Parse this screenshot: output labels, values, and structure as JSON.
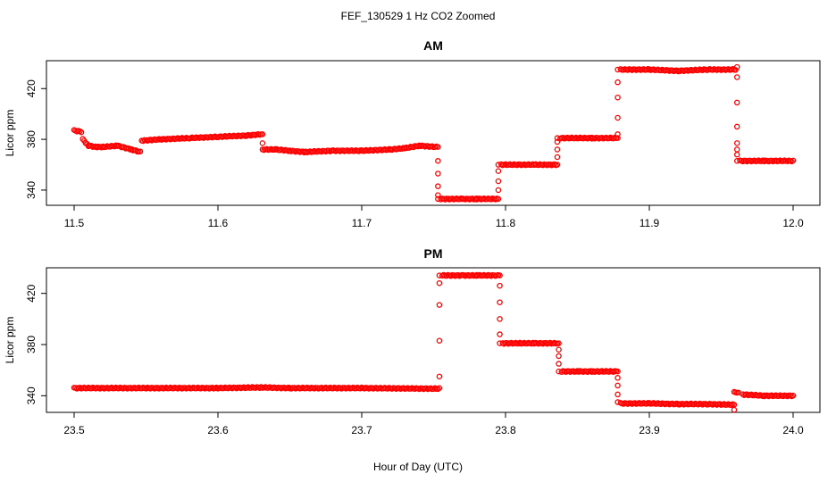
{
  "figure": {
    "title": "FEF_130529  1 Hz CO2 Zoomed",
    "xlabel": "Hour of Day (UTC)"
  },
  "chart_data": [
    {
      "type": "scatter",
      "title": "AM",
      "ylabel": "Licor ppm",
      "xlim": [
        11.5,
        12.0
      ],
      "ylim": [
        328,
        442
      ],
      "xticks": [
        "11.5",
        "11.6",
        "11.7",
        "11.8",
        "11.9",
        "12.0"
      ],
      "yticks": [
        "340",
        "380",
        "420"
      ],
      "marker_color": "#ff0000",
      "marker": "open-circle",
      "segments": [
        {
          "x": [
            11.5,
            11.505
          ],
          "y": [
            387,
            386
          ]
        },
        {
          "x": [
            11.506,
            11.51,
            11.515,
            11.52,
            11.53,
            11.54,
            11.546
          ],
          "y": [
            380,
            375,
            374,
            374,
            375,
            372,
            370
          ]
        },
        {
          "x": [
            11.547,
            11.56,
            11.58,
            11.6,
            11.62,
            11.63
          ],
          "y": [
            379,
            380,
            381,
            382,
            383,
            384
          ]
        },
        {
          "x": [
            11.632,
            11.64,
            11.65,
            11.66,
            11.68,
            11.7,
            11.72,
            11.73,
            11.74,
            11.752
          ],
          "y": [
            372,
            372,
            371,
            370,
            371,
            371,
            372,
            373,
            375,
            374
          ]
        },
        {
          "x": [
            11.755,
            11.77,
            11.78,
            11.794
          ],
          "y": [
            333,
            333,
            333,
            333
          ]
        },
        {
          "x": [
            11.797,
            11.81,
            11.82,
            11.835
          ],
          "y": [
            360,
            360,
            360,
            360
          ]
        },
        {
          "x": [
            11.838,
            11.85,
            11.86,
            11.877
          ],
          "y": [
            381,
            381,
            381,
            381
          ]
        },
        {
          "x": [
            11.88,
            11.9,
            11.92,
            11.94,
            11.96
          ],
          "y": [
            435,
            435,
            434,
            435,
            435
          ]
        },
        {
          "x": [
            11.963,
            11.98,
            12.0
          ],
          "y": [
            363,
            363,
            363
          ]
        }
      ],
      "transitions": [
        {
          "x": 11.631,
          "y": [
            384,
            377,
            372
          ]
        },
        {
          "x": 11.753,
          "y": [
            374,
            363,
            353,
            343,
            336,
            333
          ]
        },
        {
          "x": 11.795,
          "y": [
            333,
            340,
            347,
            355,
            360
          ]
        },
        {
          "x": 11.836,
          "y": [
            360,
            366,
            372,
            378,
            381
          ]
        },
        {
          "x": 11.878,
          "y": [
            381,
            384,
            397,
            413,
            425,
            435
          ]
        },
        {
          "x": 11.961,
          "y": [
            437,
            429,
            409,
            390,
            377,
            372,
            368,
            363
          ]
        }
      ]
    },
    {
      "type": "scatter",
      "title": "PM",
      "ylabel": "Licor ppm",
      "xlim": [
        23.5,
        24.0
      ],
      "ylim": [
        327,
        440
      ],
      "xticks": [
        "23.5",
        "23.6",
        "23.7",
        "23.8",
        "23.9",
        "24.0"
      ],
      "yticks": [
        "340",
        "380",
        "420"
      ],
      "marker_color": "#ff0000",
      "marker": "open-circle",
      "segments": [
        {
          "x": [
            23.5,
            23.55,
            23.6,
            23.63,
            23.65,
            23.7,
            23.753
          ],
          "y": [
            346,
            346,
            346,
            346.5,
            346,
            346,
            345.5
          ]
        },
        {
          "x": [
            23.756,
            23.77,
            23.78,
            23.795
          ],
          "y": [
            434,
            434,
            434,
            434
          ]
        },
        {
          "x": [
            23.798,
            23.81,
            23.82,
            23.836
          ],
          "y": [
            381,
            381,
            381,
            381
          ]
        },
        {
          "x": [
            23.839,
            23.85,
            23.86,
            23.877
          ],
          "y": [
            359,
            359,
            359,
            359
          ]
        },
        {
          "x": [
            23.88,
            23.9,
            23.92,
            23.94,
            23.958
          ],
          "y": [
            334,
            334,
            333.5,
            333.5,
            333
          ]
        },
        {
          "x": [
            23.96,
            23.962
          ],
          "y": [
            343,
            342
          ]
        },
        {
          "x": [
            23.965,
            23.98,
            24.0
          ],
          "y": [
            341,
            340,
            340
          ]
        }
      ],
      "transitions": [
        {
          "x": 23.754,
          "y": [
            346,
            355,
            383,
            411,
            428,
            434
          ]
        },
        {
          "x": 23.796,
          "y": [
            434,
            426,
            413,
            400,
            388,
            381
          ]
        },
        {
          "x": 23.837,
          "y": [
            381,
            376,
            371,
            365,
            359
          ]
        },
        {
          "x": 23.878,
          "y": [
            359,
            354,
            348,
            341,
            335
          ]
        },
        {
          "x": 23.959,
          "y": [
            333,
            329,
            343
          ]
        }
      ]
    }
  ]
}
